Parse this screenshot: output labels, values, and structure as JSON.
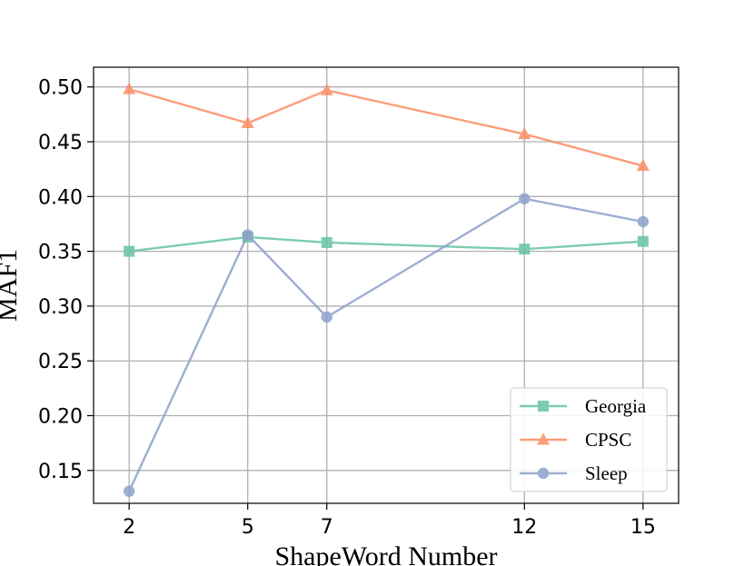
{
  "chart_data": {
    "type": "line",
    "xlabel": "ShapeWord Number",
    "ylabel": "MAF1",
    "x": [
      2,
      5,
      7,
      12,
      15
    ],
    "xticks": [
      "2",
      "5",
      "7",
      "12",
      "15"
    ],
    "xlim": [
      1.1,
      15.9
    ],
    "ylim": [
      0.12,
      0.518
    ],
    "yticks": [
      "0.15",
      "0.20",
      "0.25",
      "0.30",
      "0.35",
      "0.40",
      "0.45",
      "0.50"
    ],
    "grid": true,
    "legend_position": "lower-right",
    "series": [
      {
        "name": "Georgia",
        "color": "#66c2a5",
        "marker": "square",
        "values": [
          0.35,
          0.363,
          0.358,
          0.352,
          0.359
        ]
      },
      {
        "name": "CPSC",
        "color": "#fc8d62",
        "marker": "triangle",
        "values": [
          0.498,
          0.467,
          0.497,
          0.457,
          0.428
        ]
      },
      {
        "name": "Sleep",
        "color": "#8da0cb",
        "marker": "circle",
        "values": [
          0.131,
          0.365,
          0.29,
          0.398,
          0.377
        ]
      }
    ]
  }
}
